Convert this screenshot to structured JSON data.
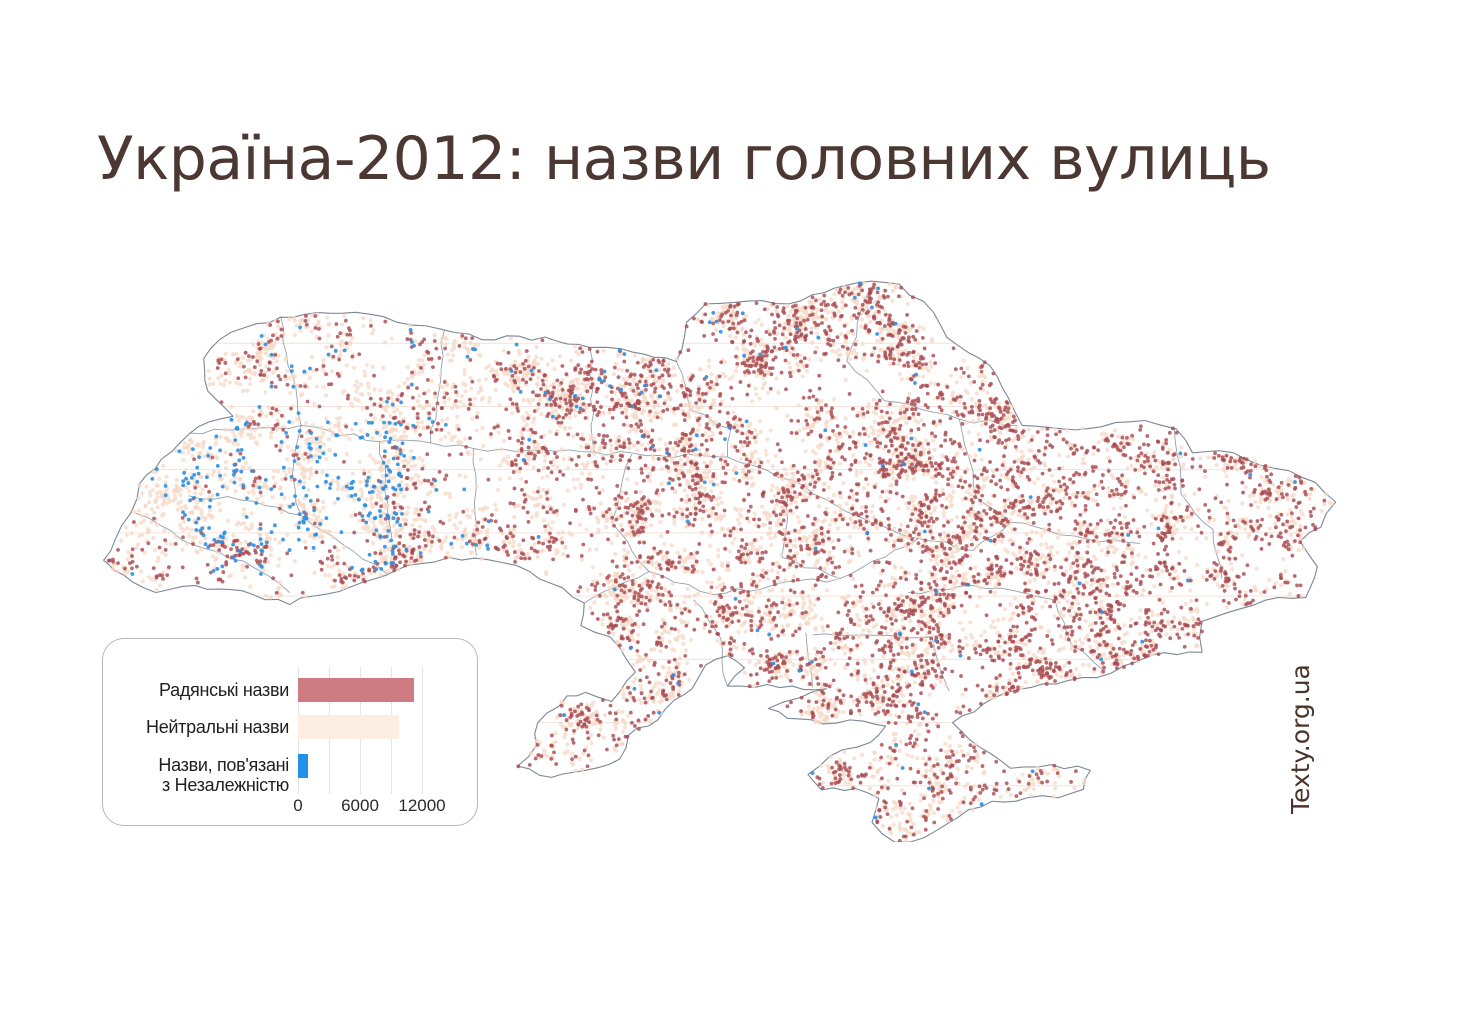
{
  "title": "Україна-2012: назви головних вулиць",
  "watermark": "Texty.org.ua",
  "legend": {
    "items": [
      {
        "label": "Радянські назви",
        "label_lines": [
          "Радянські назви"
        ],
        "value": 11200,
        "color": "#cd7b81"
      },
      {
        "label": "Нейтральні назви",
        "label_lines": [
          "Нейтральні назви"
        ],
        "value": 9800,
        "color": "#fdeee3"
      },
      {
        "label": "Назви, пов'язані з Незалежністю",
        "label_lines": [
          "Назви, пов'язані",
          "з Незалежністю"
        ],
        "value": 950,
        "color": "#2191e9"
      }
    ],
    "axis": {
      "min": 0,
      "max": 12000,
      "ticks": [
        0,
        6000,
        12000
      ],
      "gridline_step": 3000
    }
  },
  "chart_data": {
    "type": "bar",
    "orientation": "horizontal",
    "title": "Україна-2012: назви головних вулиць",
    "categories": [
      "Радянські назви",
      "Нейтральні назви",
      "Назви, пов'язані з Незалежністю"
    ],
    "values": [
      11200,
      9800,
      950
    ],
    "colors": [
      "#cd7b81",
      "#fdeee3",
      "#2191e9"
    ],
    "xlim": [
      0,
      12000
    ],
    "xticks": [
      0,
      6000,
      12000
    ],
    "grid": true,
    "legend_position": "bottom-left"
  },
  "map": {
    "dot_categories": [
      {
        "name": "soviet-names-dot",
        "color": "#a84a51",
        "count": 4300
      },
      {
        "name": "neutral-names-dot",
        "color": "#f6d8c6",
        "count": 5800
      },
      {
        "name": "independence-names-dot",
        "color": "#2b8fe2",
        "count": 400
      }
    ],
    "border_color": "#6e7e93",
    "graticule_color": "#f3e2dc"
  },
  "colors": {
    "title_text": "#4b3833",
    "legend_text": "#1f1f1f",
    "tick_text": "#2b2b2b",
    "watermark_text": "#4a352b",
    "legend_border": "#b7b7b7",
    "gridline": "#e4e4e4"
  }
}
